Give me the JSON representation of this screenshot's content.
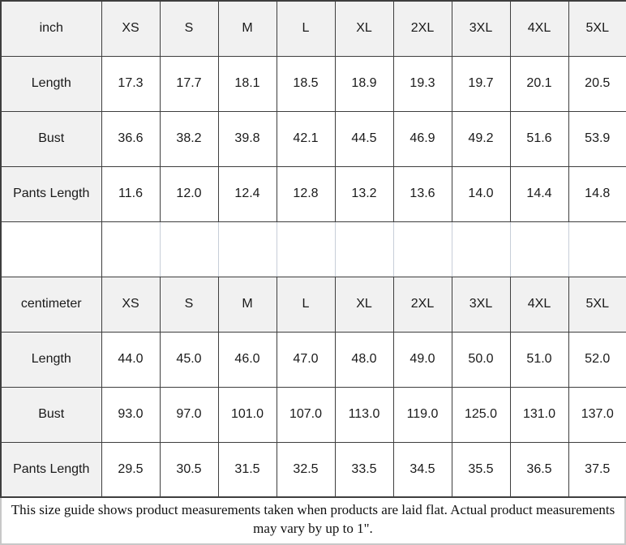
{
  "chart_data": [
    {
      "type": "table",
      "unit": "inch",
      "columns": [
        "inch",
        "XS",
        "S",
        "M",
        "L",
        "XL",
        "2XL",
        "3XL",
        "4XL",
        "5XL"
      ],
      "rows": [
        {
          "label": "Length",
          "values": [
            "17.3",
            "17.7",
            "18.1",
            "18.5",
            "18.9",
            "19.3",
            "19.7",
            "20.1",
            "20.5"
          ]
        },
        {
          "label": "Bust",
          "values": [
            "36.6",
            "38.2",
            "39.8",
            "42.1",
            "44.5",
            "46.9",
            "49.2",
            "51.6",
            "53.9"
          ]
        },
        {
          "label": "Pants Length",
          "values": [
            "11.6",
            "12.0",
            "12.4",
            "12.8",
            "13.2",
            "13.6",
            "14.0",
            "14.4",
            "14.8"
          ]
        }
      ]
    },
    {
      "type": "table",
      "unit": "centimeter",
      "columns": [
        "centimeter",
        "XS",
        "S",
        "M",
        "L",
        "XL",
        "2XL",
        "3XL",
        "4XL",
        "5XL"
      ],
      "rows": [
        {
          "label": "Length",
          "values": [
            "44.0",
            "45.0",
            "46.0",
            "47.0",
            "48.0",
            "49.0",
            "50.0",
            "51.0",
            "52.0"
          ]
        },
        {
          "label": "Bust",
          "values": [
            "93.0",
            "97.0",
            "101.0",
            "107.0",
            "113.0",
            "119.0",
            "125.0",
            "131.0",
            "137.0"
          ]
        },
        {
          "label": "Pants Length",
          "values": [
            "29.5",
            "30.5",
            "31.5",
            "32.5",
            "33.5",
            "34.5",
            "35.5",
            "36.5",
            "37.5"
          ]
        }
      ]
    }
  ],
  "footer": {
    "note": "This size guide shows product measurements taken when products are laid flat. Actual product measurements may vary by up to 1\"."
  },
  "colors": {
    "grid_border": "#3e3e3e",
    "header_bg": "#f1f1f1",
    "spacer_divider": "#c7ced8",
    "footer_border": "#c8c8c8",
    "text": "#1a1a1a"
  }
}
